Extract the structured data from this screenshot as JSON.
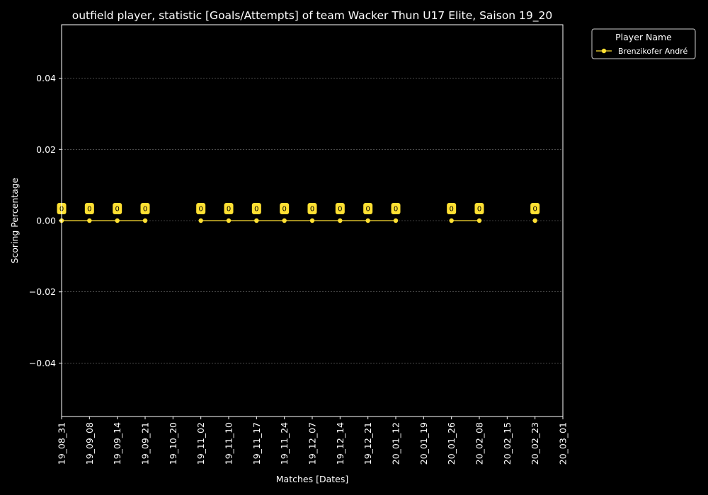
{
  "chart_data": {
    "type": "line",
    "title": "outfield player, statistic [Goals/Attempts] of team Wacker Thun U17 Elite, Saison 19_20",
    "xlabel": "Matches [Dates]",
    "ylabel": "Scoring Percentage",
    "x_ticks": [
      "19_08_31",
      "19_09_08",
      "19_09_14",
      "19_09_21",
      "19_10_20",
      "19_11_02",
      "19_11_10",
      "19_11_17",
      "19_11_24",
      "19_12_07",
      "19_12_14",
      "19_12_21",
      "20_01_12",
      "20_01_19",
      "20_01_26",
      "20_02_08",
      "20_02_15",
      "20_02_23",
      "20_03_01"
    ],
    "y_ticks": [
      -0.04,
      -0.02,
      0.0,
      0.02,
      0.04
    ],
    "y_tick_labels": [
      "−0.04",
      "−0.02",
      "0.00",
      "0.02",
      "0.04"
    ],
    "ylim": [
      -0.055,
      0.055
    ],
    "grid": true,
    "legend": {
      "title": "Player Name",
      "placement": "outside-top-right"
    },
    "series": [
      {
        "name": "Brenzikofer André",
        "color": "#ffe033",
        "segments": [
          [
            [
              "19_08_31",
              0
            ],
            [
              "19_09_08",
              0
            ],
            [
              "19_09_14",
              0
            ],
            [
              "19_09_21",
              0
            ]
          ],
          [
            [
              "19_11_02",
              0
            ],
            [
              "19_11_10",
              0
            ],
            [
              "19_11_17",
              0
            ],
            [
              "19_11_24",
              0
            ],
            [
              "19_12_07",
              0
            ],
            [
              "19_12_14",
              0
            ],
            [
              "19_12_21",
              0
            ],
            [
              "20_01_12",
              0
            ]
          ],
          [
            [
              "20_01_26",
              0
            ],
            [
              "20_02_08",
              0
            ]
          ],
          [
            [
              "20_02_23",
              0
            ]
          ]
        ],
        "data_labels": [
          "0",
          "0",
          "0",
          "0",
          "0",
          "0",
          "0",
          "0",
          "0",
          "0",
          "0",
          "0",
          "0",
          "0",
          "0"
        ]
      }
    ]
  }
}
